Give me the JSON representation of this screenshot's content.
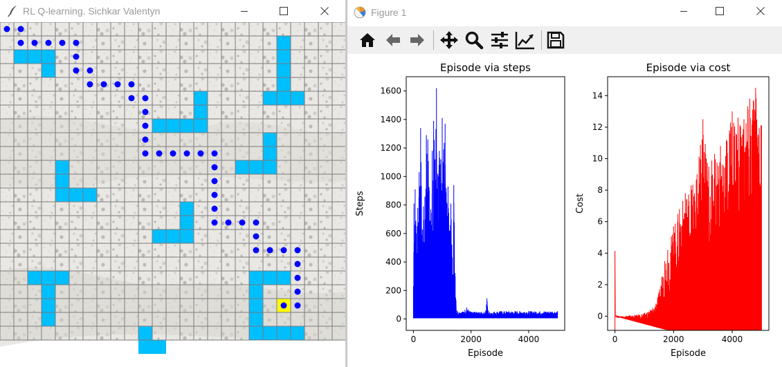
{
  "left_window": {
    "title": "RL Q-learning. Sichkar Valentyn",
    "icon": "feather-icon",
    "controls": [
      "minimize-icon",
      "maximize-icon",
      "close-icon"
    ]
  },
  "right_window": {
    "title": "Figure 1",
    "icon": "matplotlib-icon",
    "controls": [
      "minimize-icon",
      "maximize-icon",
      "close-icon"
    ]
  },
  "toolbar": {
    "buttons": [
      "home-icon",
      "back-icon",
      "forward-icon",
      "pan-icon",
      "zoom-icon",
      "configure-subplots-icon",
      "edit-axis-icon",
      "save-icon"
    ]
  },
  "grid": {
    "rows": 23,
    "cols": 25,
    "colors": {
      "obstacle": "#00bfff",
      "goal": "#ffff00",
      "agent": "#0000ff",
      "line": "#7a7a7a",
      "background": "#e9e8e4"
    },
    "obstacles": [
      [
        1,
        20
      ],
      [
        2,
        20
      ],
      [
        3,
        20
      ],
      [
        4,
        20
      ],
      [
        5,
        19
      ],
      [
        5,
        20
      ],
      [
        5,
        21
      ],
      [
        2,
        1
      ],
      [
        2,
        2
      ],
      [
        2,
        3
      ],
      [
        3,
        3
      ],
      [
        5,
        14
      ],
      [
        6,
        14
      ],
      [
        7,
        14
      ],
      [
        7,
        11
      ],
      [
        7,
        12
      ],
      [
        7,
        13
      ],
      [
        8,
        19
      ],
      [
        9,
        19
      ],
      [
        10,
        17
      ],
      [
        10,
        18
      ],
      [
        10,
        19
      ],
      [
        10,
        4
      ],
      [
        11,
        4
      ],
      [
        12,
        4
      ],
      [
        12,
        5
      ],
      [
        12,
        6
      ],
      [
        13,
        13
      ],
      [
        14,
        13
      ],
      [
        15,
        11
      ],
      [
        15,
        12
      ],
      [
        15,
        13
      ],
      [
        18,
        2
      ],
      [
        18,
        3
      ],
      [
        18,
        4
      ],
      [
        19,
        3
      ],
      [
        20,
        3
      ],
      [
        21,
        3
      ],
      [
        18,
        18
      ],
      [
        18,
        19
      ],
      [
        18,
        20
      ],
      [
        19,
        18
      ],
      [
        20,
        18
      ],
      [
        21,
        18
      ],
      [
        22,
        18
      ],
      [
        22,
        19
      ],
      [
        22,
        20
      ],
      [
        22,
        21
      ],
      [
        22,
        10
      ],
      [
        23,
        10
      ],
      [
        23,
        11
      ]
    ],
    "goal": [
      20,
      20
    ],
    "path": [
      [
        0,
        0
      ],
      [
        0,
        1
      ],
      [
        1,
        1
      ],
      [
        1,
        2
      ],
      [
        1,
        3
      ],
      [
        1,
        4
      ],
      [
        1,
        5
      ],
      [
        2,
        5
      ],
      [
        3,
        5
      ],
      [
        3,
        6
      ],
      [
        4,
        6
      ],
      [
        4,
        7
      ],
      [
        4,
        8
      ],
      [
        4,
        9
      ],
      [
        5,
        9
      ],
      [
        5,
        10
      ],
      [
        6,
        10
      ],
      [
        7,
        10
      ],
      [
        8,
        10
      ],
      [
        9,
        10
      ],
      [
        9,
        11
      ],
      [
        9,
        12
      ],
      [
        9,
        13
      ],
      [
        9,
        14
      ],
      [
        9,
        15
      ],
      [
        10,
        15
      ],
      [
        11,
        15
      ],
      [
        12,
        15
      ],
      [
        13,
        15
      ],
      [
        14,
        15
      ],
      [
        14,
        16
      ],
      [
        14,
        17
      ],
      [
        14,
        18
      ],
      [
        15,
        18
      ],
      [
        16,
        18
      ],
      [
        16,
        19
      ],
      [
        16,
        20
      ],
      [
        16,
        21
      ],
      [
        17,
        21
      ],
      [
        18,
        21
      ],
      [
        19,
        21
      ],
      [
        20,
        21
      ],
      [
        20,
        20
      ]
    ]
  },
  "chart_data": [
    {
      "type": "line",
      "title": "Episode via steps",
      "xlabel": "Episode",
      "ylabel": "Steps",
      "color": "#0000ff",
      "xlim": [
        -250,
        5250
      ],
      "ylim": [
        -80,
        1700
      ],
      "xticks": [
        0,
        2000,
        4000
      ],
      "yticks": [
        0,
        200,
        400,
        600,
        800,
        1000,
        1200,
        1400,
        1600
      ],
      "envelope": {
        "x": [
          0,
          20,
          60,
          100,
          150,
          200,
          250,
          300,
          350,
          400,
          450,
          500,
          550,
          600,
          650,
          700,
          750,
          800,
          850,
          900,
          950,
          1000,
          1050,
          1100,
          1150,
          1200,
          1250,
          1300,
          1350,
          1400,
          1450,
          1500,
          1700,
          1850,
          2000,
          2500,
          2550,
          2600,
          3000,
          4000,
          5000
        ],
        "max": [
          230,
          810,
          910,
          600,
          780,
          1030,
          1340,
          590,
          790,
          860,
          1290,
          1260,
          900,
          770,
          1180,
          1390,
          1120,
          1620,
          1020,
          1180,
          1120,
          1410,
          1190,
          1370,
          820,
          930,
          620,
          810,
          430,
          940,
          300,
          60,
          50,
          80,
          50,
          50,
          145,
          50,
          55,
          55,
          55
        ],
        "min": [
          5,
          5,
          5,
          5,
          5,
          5,
          5,
          5,
          5,
          5,
          5,
          5,
          5,
          5,
          5,
          5,
          5,
          5,
          5,
          5,
          5,
          5,
          5,
          5,
          5,
          5,
          5,
          5,
          5,
          5,
          5,
          5,
          5,
          5,
          5,
          5,
          5,
          5,
          5,
          5,
          5
        ]
      }
    },
    {
      "type": "line",
      "title": "Episode via cost",
      "xlabel": "Episode",
      "ylabel": "Cost",
      "color": "#ff0000",
      "xlim": [
        -250,
        5250
      ],
      "ylim": [
        -0.9,
        15.2
      ],
      "xticks": [
        0,
        2000,
        4000
      ],
      "yticks": [
        0,
        2,
        4,
        6,
        8,
        10,
        12,
        14
      ],
      "envelope": {
        "x": [
          0,
          200,
          500,
          800,
          1000,
          1200,
          1400,
          1500,
          1600,
          1700,
          1800,
          2000,
          2200,
          2400,
          2600,
          2800,
          3000,
          3200,
          3400,
          3600,
          3800,
          4000,
          4200,
          4400,
          4600,
          4800,
          5000
        ],
        "max": [
          0.0,
          0.0,
          0.05,
          0.1,
          0.2,
          0.4,
          0.8,
          1.5,
          2.5,
          3.5,
          4.2,
          5.7,
          6.8,
          7.8,
          8.3,
          9.0,
          12.5,
          9.5,
          10.3,
          10.8,
          11.2,
          13.0,
          12.6,
          12.5,
          13.8,
          14.5,
          12.1
        ],
        "min": [
          0.0,
          -0.1,
          -0.25,
          -0.4,
          -0.5,
          -0.6,
          -0.7,
          -0.75,
          -0.8,
          -0.85,
          -0.88,
          -0.9,
          -0.9,
          -0.9,
          -0.9,
          -0.9,
          -0.9,
          -0.9,
          -0.9,
          -0.9,
          -0.9,
          -0.9,
          -0.9,
          -0.9,
          -0.9,
          -0.9,
          -0.9
        ]
      }
    }
  ]
}
